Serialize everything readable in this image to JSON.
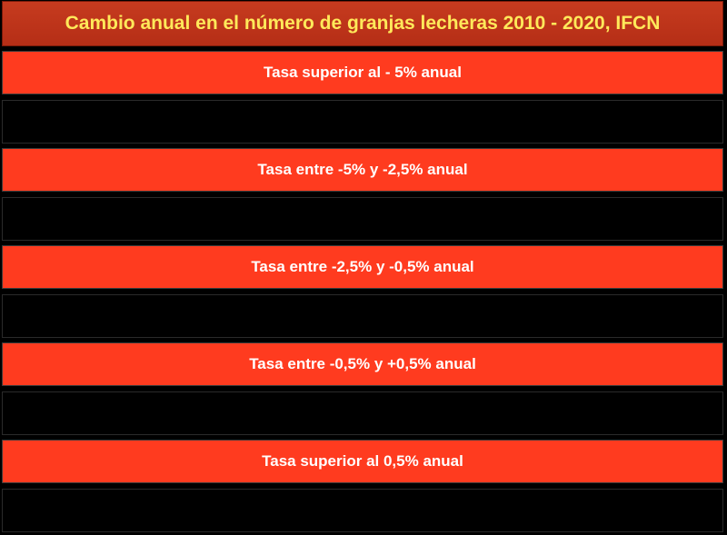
{
  "title": "Cambio anual en el número de granjas lecheras 2010 - 2020, IFCN",
  "rows": [
    {
      "category": "Tasa superior al - 5% anual",
      "countries": ""
    },
    {
      "category": "Tasa entre -5% y -2,5% anual",
      "countries": ""
    },
    {
      "category": "Tasa entre -2,5% y -0,5% anual",
      "countries": ""
    },
    {
      "category": "Tasa entre -0,5% y +0,5% anual",
      "countries": ""
    },
    {
      "category": "Tasa superior al 0,5% anual",
      "countries": ""
    }
  ],
  "colors": {
    "title_bg": "#c0361a",
    "title_text": "#ffe95a",
    "category_bg": "#ff3b1f",
    "category_text": "#ffffff",
    "country_bg": "#000000"
  }
}
